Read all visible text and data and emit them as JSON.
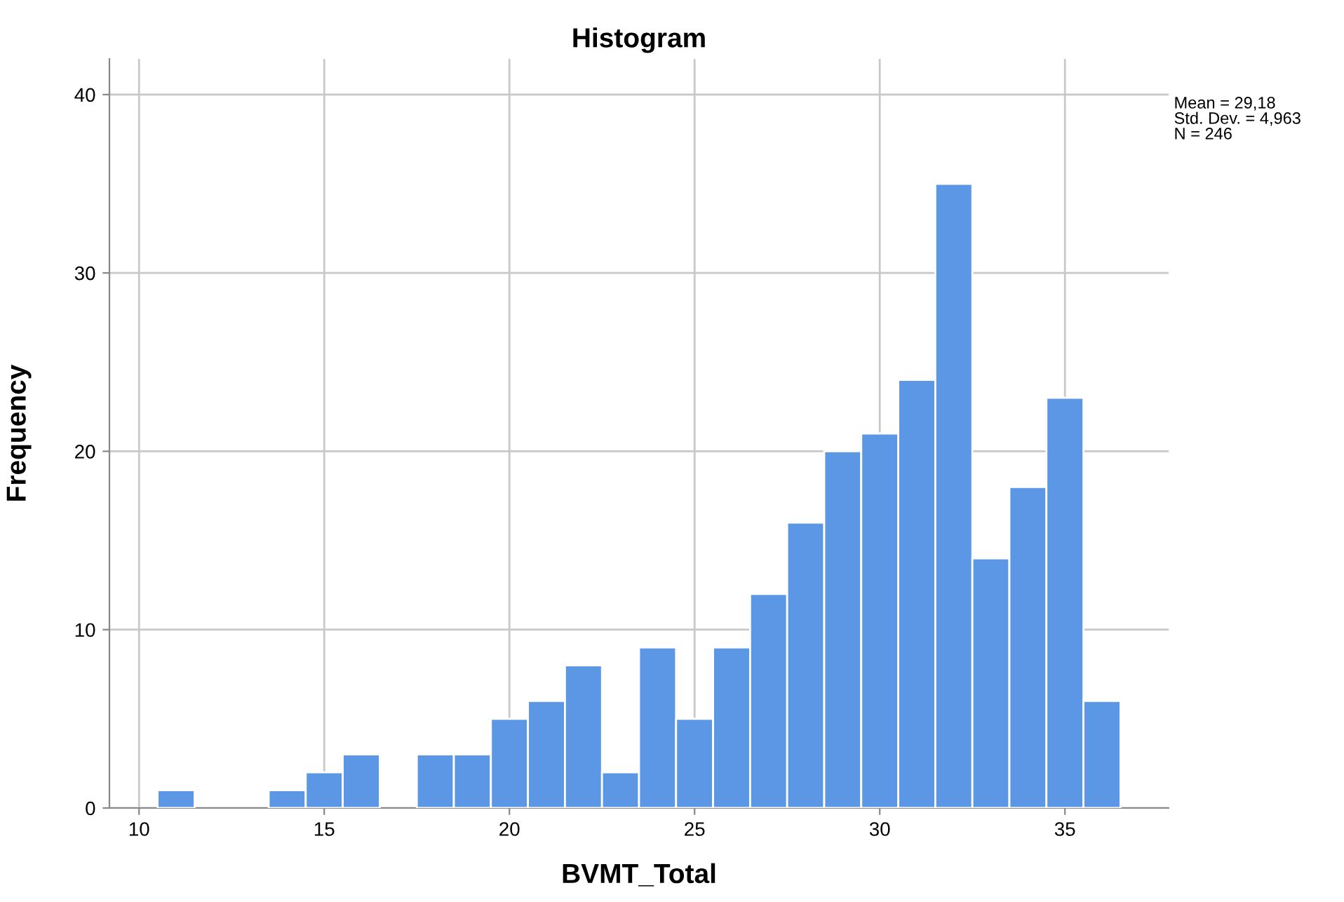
{
  "chart_data": {
    "type": "histogram",
    "title": "Histogram",
    "xlabel": "BVMT_Total",
    "ylabel": "Frequency",
    "bins": [
      10.5,
      11.5,
      12.5,
      13.5,
      14.5,
      15.5,
      16.5,
      17.5,
      18.5,
      19.5,
      20.5,
      21.5,
      22.5,
      23.5,
      24.5,
      25.5,
      26.5,
      27.5,
      28.5,
      29.5,
      30.5,
      31.5,
      32.5,
      33.5,
      34.5,
      35.5,
      36.5
    ],
    "values": [
      1,
      0,
      0,
      1,
      2,
      3,
      0,
      3,
      3,
      5,
      6,
      8,
      2,
      9,
      5,
      9,
      12,
      16,
      20,
      21,
      24,
      35,
      14,
      18,
      23,
      6
    ],
    "color": "#5b97e5",
    "xlim": [
      9.2,
      37.8
    ],
    "xticks": [
      10,
      15,
      20,
      25,
      30,
      35
    ],
    "ylim": [
      0,
      42
    ],
    "yticks": [
      0,
      10,
      20,
      30,
      40
    ],
    "grid": true,
    "annotations": [
      "Mean = 29,18\nStd. Dev. = 4,963\nN = 246"
    ]
  }
}
